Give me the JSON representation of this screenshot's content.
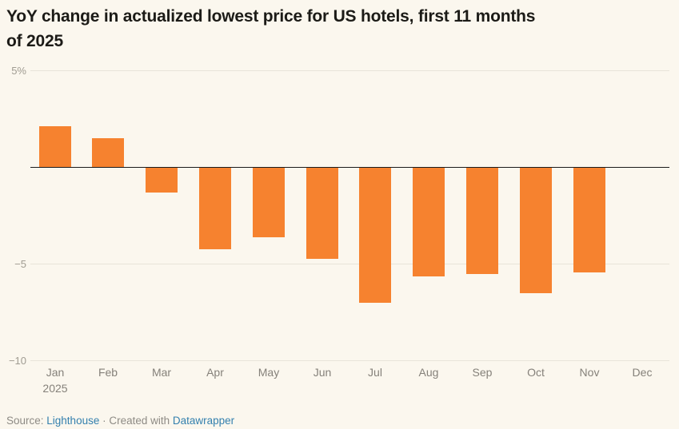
{
  "title": {
    "full": "YoY change in actualized lowest price for US hotels, first 11 months of 2025",
    "lines": [
      "YoY change in actualized lowest price for US hotels, first 11 months",
      "of 2025"
    ]
  },
  "chart_data": {
    "type": "bar",
    "title": "YoY change in actualized lowest price for US hotels, first 11 months of 2025",
    "categories": [
      "Jan",
      "Feb",
      "Mar",
      "Apr",
      "May",
      "Jun",
      "Jul",
      "Aug",
      "Sep",
      "Oct",
      "Nov",
      "Dec"
    ],
    "values": [
      2.1,
      1.5,
      -1.3,
      -4.2,
      -3.6,
      -4.7,
      -7.0,
      -5.6,
      -5.5,
      -6.5,
      -5.4,
      null
    ],
    "x_sub_label": {
      "under_category": "Jan",
      "text": "2025"
    },
    "xlabel": "",
    "ylabel": "",
    "ylim": [
      -10,
      5
    ],
    "yticks": [
      {
        "value": 5,
        "label": "5%"
      },
      {
        "value": 0,
        "label": ""
      },
      {
        "value": -5,
        "label": "−5"
      },
      {
        "value": -10,
        "label": "−10"
      }
    ],
    "grid": true,
    "legend": "none",
    "bar_color": "#f6822f"
  },
  "footer": {
    "source_prefix": "Source: ",
    "source_link": "Lighthouse",
    "separator": " · Created with ",
    "tool_link": "Datawrapper"
  },
  "colors": {
    "background": "#FBF7EE",
    "bar": "#f6822f",
    "grid": "#e8e4d9",
    "zero_line": "#1a1a1a",
    "y_tick_text": "#a09c92",
    "x_tick_text": "#85817a",
    "footer_text": "#8e8b85",
    "link": "#3480ae",
    "title_text": "#1c1b17"
  }
}
